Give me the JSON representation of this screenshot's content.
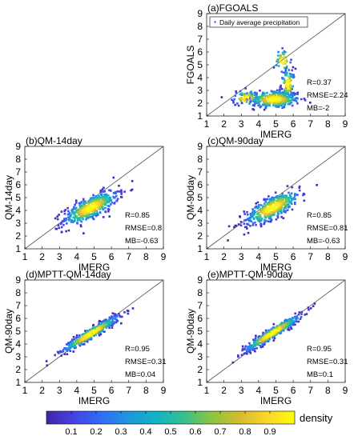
{
  "figure": {
    "colorbar": {
      "label": "density",
      "ticks": [
        "0.1",
        "0.2",
        "0.3",
        "0.4",
        "0.5",
        "0.6",
        "0.7",
        "0.8",
        "0.9"
      ],
      "colors": [
        "#3e26a8",
        "#4743e3",
        "#2f6ef8",
        "#1c98dc",
        "#12b4c3",
        "#36c18d",
        "#8cc53f",
        "#d5bb2f",
        "#fbd728",
        "#f9fb0e"
      ]
    }
  },
  "chart_data": [
    {
      "type": "scatter",
      "title": "(a)FGOALS",
      "xlabel": "IMERG",
      "ylabel": "FGOALS",
      "xlim": [
        1,
        9
      ],
      "ylim": [
        1,
        9
      ],
      "xticks": [
        "1",
        "2",
        "3",
        "4",
        "5",
        "6",
        "7",
        "8",
        "9"
      ],
      "yticks": [
        "1",
        "2",
        "3",
        "4",
        "5",
        "6",
        "7",
        "8",
        "9"
      ],
      "legend": "Daily average precipitation",
      "stats": [
        "R=0.37",
        "RMSE=2.24",
        "MB=-2"
      ],
      "reference_line": "1:1",
      "clusters": [
        {
          "cx": 4.9,
          "cy": 2.3,
          "sx": 0.75,
          "sy": 0.35,
          "n": 320
        },
        {
          "cx": 3.3,
          "cy": 2.4,
          "sx": 0.4,
          "sy": 0.3,
          "n": 70
        },
        {
          "cx": 5.7,
          "cy": 3.5,
          "sx": 0.2,
          "sy": 0.6,
          "n": 90
        },
        {
          "cx": 5.4,
          "cy": 5.3,
          "sx": 0.25,
          "sy": 0.5,
          "n": 40
        }
      ]
    },
    {
      "type": "scatter",
      "title": "(b)QM-14day",
      "xlabel": "IMERG",
      "ylabel": "QM-14day",
      "xlim": [
        1,
        9
      ],
      "ylim": [
        1,
        9
      ],
      "xticks": [
        "1",
        "2",
        "3",
        "4",
        "5",
        "6",
        "7",
        "8",
        "9"
      ],
      "yticks": [
        "1",
        "2",
        "3",
        "4",
        "5",
        "6",
        "7",
        "8",
        "9"
      ],
      "stats": [
        "R=0.85",
        "RMSE=0.8",
        "MB=-0.63"
      ],
      "reference_line": "1:1",
      "clusters": [
        {
          "cx": 4.8,
          "cy": 4.2,
          "sx": 0.8,
          "sy": 0.45,
          "slope": 0.62,
          "n": 420
        }
      ]
    },
    {
      "type": "scatter",
      "title": "(c)QM-90day",
      "xlabel": "IMERG",
      "ylabel": "QM-90day",
      "xlim": [
        1,
        9
      ],
      "ylim": [
        1,
        9
      ],
      "xticks": [
        "1",
        "2",
        "3",
        "4",
        "5",
        "6",
        "7",
        "8",
        "9"
      ],
      "yticks": [
        "1",
        "2",
        "3",
        "4",
        "5",
        "6",
        "7",
        "8",
        "9"
      ],
      "stats": [
        "R=0.85",
        "RMSE=0.81",
        "MB=-0.63"
      ],
      "reference_line": "1:1",
      "clusters": [
        {
          "cx": 4.8,
          "cy": 4.2,
          "sx": 0.8,
          "sy": 0.45,
          "slope": 0.62,
          "n": 420
        }
      ]
    },
    {
      "type": "scatter",
      "title": "(d)MPTT-QM-14day",
      "xlabel": "IMERG",
      "ylabel": "QM-90day",
      "xlim": [
        1,
        9
      ],
      "ylim": [
        1,
        9
      ],
      "xticks": [
        "1",
        "2",
        "3",
        "4",
        "5",
        "6",
        "7",
        "8",
        "9"
      ],
      "yticks": [
        "1",
        "2",
        "3",
        "4",
        "5",
        "6",
        "7",
        "8",
        "9"
      ],
      "stats": [
        "R=0.95",
        "RMSE=0.31",
        "MB=0.04"
      ],
      "reference_line": "1:1",
      "clusters": [
        {
          "cx": 4.8,
          "cy": 4.8,
          "sx": 0.85,
          "sy": 0.22,
          "slope": 0.82,
          "n": 420
        }
      ]
    },
    {
      "type": "scatter",
      "title": "(e)MPTT-QM-90day",
      "xlabel": "IMERG",
      "ylabel": "QM-90day",
      "xlim": [
        1,
        9
      ],
      "ylim": [
        1,
        9
      ],
      "xticks": [
        "1",
        "2",
        "3",
        "4",
        "5",
        "6",
        "7",
        "8",
        "9"
      ],
      "yticks": [
        "1",
        "2",
        "3",
        "4",
        "5",
        "6",
        "7",
        "8",
        "9"
      ],
      "stats": [
        "R=0.95",
        "RMSE=0.31",
        "MB=0.1"
      ],
      "reference_line": "1:1",
      "clusters": [
        {
          "cx": 4.8,
          "cy": 4.85,
          "sx": 0.85,
          "sy": 0.22,
          "slope": 0.84,
          "n": 420
        }
      ]
    }
  ]
}
